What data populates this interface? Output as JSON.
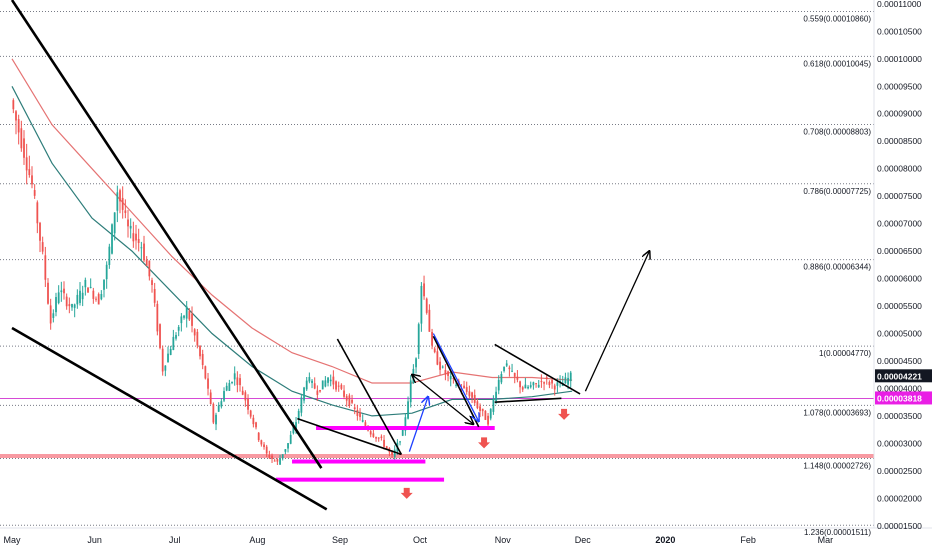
{
  "chart_data": {
    "type": "candlestick",
    "title": "",
    "xlabel": "",
    "ylabel": "",
    "ylim": [
      1.46e-05,
      0.0001107
    ],
    "grid": false,
    "x_ticks": [
      {
        "label": "May",
        "day": 0
      },
      {
        "label": "Jun",
        "day": 31
      },
      {
        "label": "Jul",
        "day": 61
      },
      {
        "label": "Aug",
        "day": 92
      },
      {
        "label": "Sep",
        "day": 123
      },
      {
        "label": "Oct",
        "day": 153
      },
      {
        "label": "Nov",
        "day": 184
      },
      {
        "label": "Dec",
        "day": 214
      },
      {
        "label": "2020",
        "day": 245
      },
      {
        "label": "Feb",
        "day": 276
      },
      {
        "label": "Mar",
        "day": 305
      }
    ],
    "y_ticks": [
      "0.00001500",
      "0.00002000",
      "0.00002500",
      "0.00003000",
      "0.00003500",
      "0.00004000",
      "0.00004500",
      "0.00005000",
      "0.00005500",
      "0.00006000",
      "0.00006500",
      "0.00007000",
      "0.00007500",
      "0.00008000",
      "0.00008500",
      "0.00009000",
      "0.00009500",
      "0.00010000",
      "0.00010500",
      "0.00011000"
    ],
    "fib_levels": [
      {
        "ratio": "0.559",
        "price": 0.0001086,
        "label": "0.559(0.00010860)"
      },
      {
        "ratio": "0.618",
        "price": 0.00010045,
        "label": "0.618(0.00010045)"
      },
      {
        "ratio": "0.708",
        "price": 8.803e-05,
        "label": "0.708(0.00008803)"
      },
      {
        "ratio": "0.786",
        "price": 7.725e-05,
        "label": "0.786(0.00007725)"
      },
      {
        "ratio": "0.886",
        "price": 6.344e-05,
        "label": "0.886(0.00006344)"
      },
      {
        "ratio": "1",
        "price": 4.77e-05,
        "label": "1(0.00004770)"
      },
      {
        "ratio": "1.078",
        "price": 3.693e-05,
        "label": "1.078(0.00003693)"
      },
      {
        "ratio": "1.148",
        "price": 2.726e-05,
        "label": "1.148(0.00002726)"
      },
      {
        "ratio": "1.236",
        "price": 1.511e-05,
        "label": "1.236(0.00001511)"
      }
    ],
    "price_tags": [
      {
        "price": 4.221e-05,
        "label": "0.00004221",
        "bg": "#131722",
        "fg": "#ffffff"
      },
      {
        "price": 3.818e-05,
        "label": "0.00003818",
        "bg": "#e91ee5",
        "fg": "#ffffff"
      }
    ],
    "horizontal_lines": [
      {
        "name": "red-support-line",
        "price": 2.77e-05,
        "color": "#f23645"
      },
      {
        "name": "magenta-level-line",
        "price": 3.818e-05,
        "color": "#d64ad6"
      }
    ],
    "candle_colors": {
      "up": "#26a69a",
      "down": "#ef5350"
    },
    "ma_colors": {
      "fast": "#e57373",
      "slow": "#2e7d7a"
    },
    "price_path": [
      {
        "day": 0,
        "price": 9.25e-05
      },
      {
        "day": 4,
        "price": 8.5e-05
      },
      {
        "day": 8,
        "price": 7.7e-05
      },
      {
        "day": 12,
        "price": 6.4e-05
      },
      {
        "day": 15,
        "price": 5.2e-05
      },
      {
        "day": 18,
        "price": 5.8e-05
      },
      {
        "day": 23,
        "price": 5.45e-05
      },
      {
        "day": 28,
        "price": 5.9e-05
      },
      {
        "day": 33,
        "price": 5.6e-05
      },
      {
        "day": 36,
        "price": 6.2e-05
      },
      {
        "day": 40,
        "price": 7.6e-05
      },
      {
        "day": 44,
        "price": 6.9e-05
      },
      {
        "day": 49,
        "price": 6.6e-05
      },
      {
        "day": 53,
        "price": 5.85e-05
      },
      {
        "day": 57,
        "price": 4.35e-05
      },
      {
        "day": 61,
        "price": 4.9e-05
      },
      {
        "day": 66,
        "price": 5.45e-05
      },
      {
        "day": 69,
        "price": 4.95e-05
      },
      {
        "day": 73,
        "price": 4.2e-05
      },
      {
        "day": 76,
        "price": 3.4e-05
      },
      {
        "day": 80,
        "price": 3.95e-05
      },
      {
        "day": 84,
        "price": 4.25e-05
      },
      {
        "day": 88,
        "price": 3.8e-05
      },
      {
        "day": 93,
        "price": 3.1e-05
      },
      {
        "day": 96,
        "price": 2.8e-05
      },
      {
        "day": 100,
        "price": 2.65e-05
      },
      {
        "day": 104,
        "price": 3e-05
      },
      {
        "day": 107,
        "price": 3.4e-05
      },
      {
        "day": 111,
        "price": 4.2e-05
      },
      {
        "day": 115,
        "price": 3.95e-05
      },
      {
        "day": 119,
        "price": 4.2e-05
      },
      {
        "day": 123,
        "price": 4e-05
      },
      {
        "day": 127,
        "price": 3.75e-05
      },
      {
        "day": 131,
        "price": 3.45e-05
      },
      {
        "day": 135,
        "price": 3.2e-05
      },
      {
        "day": 139,
        "price": 3.05e-05
      },
      {
        "day": 143,
        "price": 2.75e-05
      },
      {
        "day": 147,
        "price": 3.2e-05
      },
      {
        "day": 150,
        "price": 4.1e-05
      },
      {
        "day": 152,
        "price": 4.6e-05
      },
      {
        "day": 154,
        "price": 5.9e-05
      },
      {
        "day": 156,
        "price": 5.45e-05
      },
      {
        "day": 158,
        "price": 4.7e-05
      },
      {
        "day": 161,
        "price": 4.4e-05
      },
      {
        "day": 164,
        "price": 4.2e-05
      },
      {
        "day": 168,
        "price": 4.05e-05
      },
      {
        "day": 172,
        "price": 3.9e-05
      },
      {
        "day": 176,
        "price": 3.6e-05
      },
      {
        "day": 179,
        "price": 3.4e-05
      },
      {
        "day": 182,
        "price": 4e-05
      },
      {
        "day": 185,
        "price": 4.45e-05
      },
      {
        "day": 188,
        "price": 4.25e-05
      },
      {
        "day": 192,
        "price": 4e-05
      },
      {
        "day": 196,
        "price": 4.05e-05
      },
      {
        "day": 200,
        "price": 4.15e-05
      },
      {
        "day": 204,
        "price": 4.05e-05
      },
      {
        "day": 207,
        "price": 4.1e-05
      },
      {
        "day": 210,
        "price": 4.22e-05
      }
    ],
    "ma_fast": [
      {
        "day": 0,
        "price": 0.0001
      },
      {
        "day": 15,
        "price": 8.8e-05
      },
      {
        "day": 30,
        "price": 8e-05
      },
      {
        "day": 45,
        "price": 7.2e-05
      },
      {
        "day": 60,
        "price": 6.4e-05
      },
      {
        "day": 75,
        "price": 5.7e-05
      },
      {
        "day": 90,
        "price": 5.1e-05
      },
      {
        "day": 105,
        "price": 4.65e-05
      },
      {
        "day": 120,
        "price": 4.4e-05
      },
      {
        "day": 135,
        "price": 4.1e-05
      },
      {
        "day": 150,
        "price": 4.1e-05
      },
      {
        "day": 165,
        "price": 4.3e-05
      },
      {
        "day": 180,
        "price": 4.2e-05
      },
      {
        "day": 195,
        "price": 4.2e-05
      },
      {
        "day": 210,
        "price": 4.15e-05
      }
    ],
    "ma_slow": [
      {
        "day": 0,
        "price": 9.5e-05
      },
      {
        "day": 15,
        "price": 8.1e-05
      },
      {
        "day": 30,
        "price": 7.1e-05
      },
      {
        "day": 45,
        "price": 6.5e-05
      },
      {
        "day": 60,
        "price": 5.75e-05
      },
      {
        "day": 75,
        "price": 5e-05
      },
      {
        "day": 90,
        "price": 4.4e-05
      },
      {
        "day": 105,
        "price": 3.95e-05
      },
      {
        "day": 120,
        "price": 3.7e-05
      },
      {
        "day": 135,
        "price": 3.5e-05
      },
      {
        "day": 150,
        "price": 3.55e-05
      },
      {
        "day": 165,
        "price": 3.8e-05
      },
      {
        "day": 180,
        "price": 3.8e-05
      },
      {
        "day": 195,
        "price": 3.85e-05
      },
      {
        "day": 210,
        "price": 3.95e-05
      }
    ],
    "drawings": {
      "trend_lines": [
        {
          "name": "falling-resistance-line",
          "p1": {
            "day": 0,
            "price": 0.0001107
          },
          "p2": {
            "day": 116,
            "price": 2.55e-05
          }
        },
        {
          "name": "falling-support-line",
          "p1": {
            "day": 0,
            "price": 5.1e-05
          },
          "p2": {
            "day": 118,
            "price": 1.8e-05
          }
        },
        {
          "name": "sep-wedge-upper-line",
          "p1": {
            "day": 122,
            "price": 4.9e-05
          },
          "p2": {
            "day": 146,
            "price": 2.8e-05
          }
        },
        {
          "name": "sep-wedge-lower-line",
          "p1": {
            "day": 107,
            "price": 3.45e-05
          },
          "p2": {
            "day": 146,
            "price": 2.8e-05
          }
        },
        {
          "name": "oct-wedge-upper-line",
          "p1": {
            "day": 158,
            "price": 4.95e-05
          },
          "p2": {
            "day": 175,
            "price": 3.3e-05
          }
        },
        {
          "name": "nov-triangle-upper-line",
          "p1": {
            "day": 181,
            "price": 4.8e-05
          },
          "p2": {
            "day": 213,
            "price": 3.9e-05
          }
        },
        {
          "name": "nov-triangle-lower-line",
          "p1": {
            "day": 181,
            "price": 3.75e-05
          },
          "p2": {
            "day": 206,
            "price": 3.82e-05
          }
        }
      ],
      "arrows": [
        {
          "name": "projection-arrow",
          "color": "#000000",
          "from": {
            "day": 215,
            "price": 3.95e-05
          },
          "to": {
            "day": 239,
            "price": 6.5e-05
          }
        },
        {
          "name": "oct-pullback-arrow",
          "color": "#000000",
          "from": {
            "day": 173,
            "price": 3.35e-05
          },
          "to": {
            "day": 150,
            "price": 4.25e-05
          }
        },
        {
          "name": "sep-breakout-arrow",
          "color": "#1e40ff",
          "from": {
            "day": 149,
            "price": 2.85e-05
          },
          "to": {
            "day": 156,
            "price": 3.85e-05
          }
        },
        {
          "name": "oct-rally-arrow",
          "color": "#1e40ff",
          "from": {
            "day": 158,
            "price": 5e-05
          },
          "to": {
            "day": 175,
            "price": 3.4e-05
          }
        }
      ],
      "zones": [
        {
          "name": "magenta-zone-upper",
          "day1": 114,
          "day2": 181,
          "price": 3.28e-05
        },
        {
          "name": "magenta-zone-middle",
          "day1": 105,
          "day2": 155,
          "price": 2.67e-05
        },
        {
          "name": "magenta-zone-lower",
          "day1": 99,
          "day2": 162,
          "price": 2.34e-05
        }
      ],
      "down_markers": [
        {
          "name": "down-marker-oct",
          "day": 148,
          "price": 2.08e-05
        },
        {
          "name": "down-marker-nov",
          "day": 177,
          "price": 3e-05
        },
        {
          "name": "down-marker-dec",
          "day": 207,
          "price": 3.52e-05
        }
      ]
    }
  }
}
